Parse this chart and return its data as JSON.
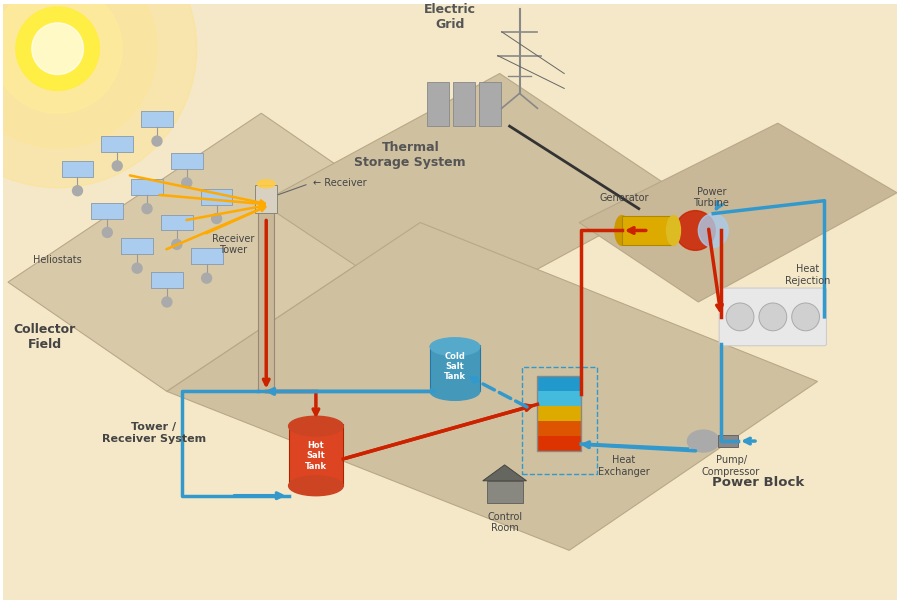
{
  "bg_color": "#f5e8c8",
  "labels": {
    "heliostats": "Heliostats",
    "receiver": "Receiver",
    "receiver_tower": "Receiver\nTower",
    "collector_field": "Collector\nField",
    "tower_receiver": "Tower /\nReceiver System",
    "thermal_storage": "Thermal\nStorage System",
    "hot_salt_tank": "Hot\nSalt\nTank",
    "cold_salt_tank": "Cold\nSalt\nTank",
    "heat_exchanger": "Heat\nExchanger",
    "control_room": "Control\nRoom",
    "generator": "Generator",
    "power_turbine": "Power\nTurbine",
    "heat_rejection": "Heat\nRejection",
    "pump_compressor": "Pump/\nCompressor",
    "electric_grid": "Electric\nGrid",
    "power_block": "Power Block"
  },
  "colors": {
    "hot_flow": "#cc2200",
    "cold_flow": "#3399cc",
    "heliostat_mirror": "#aaccee",
    "label_dark": "#444444"
  },
  "fontsize_small": 7,
  "fontsize_label": 8,
  "fontsize_bold": 9,
  "fontsize_bold_large": 9.5,
  "lw_pipe": 2.5
}
